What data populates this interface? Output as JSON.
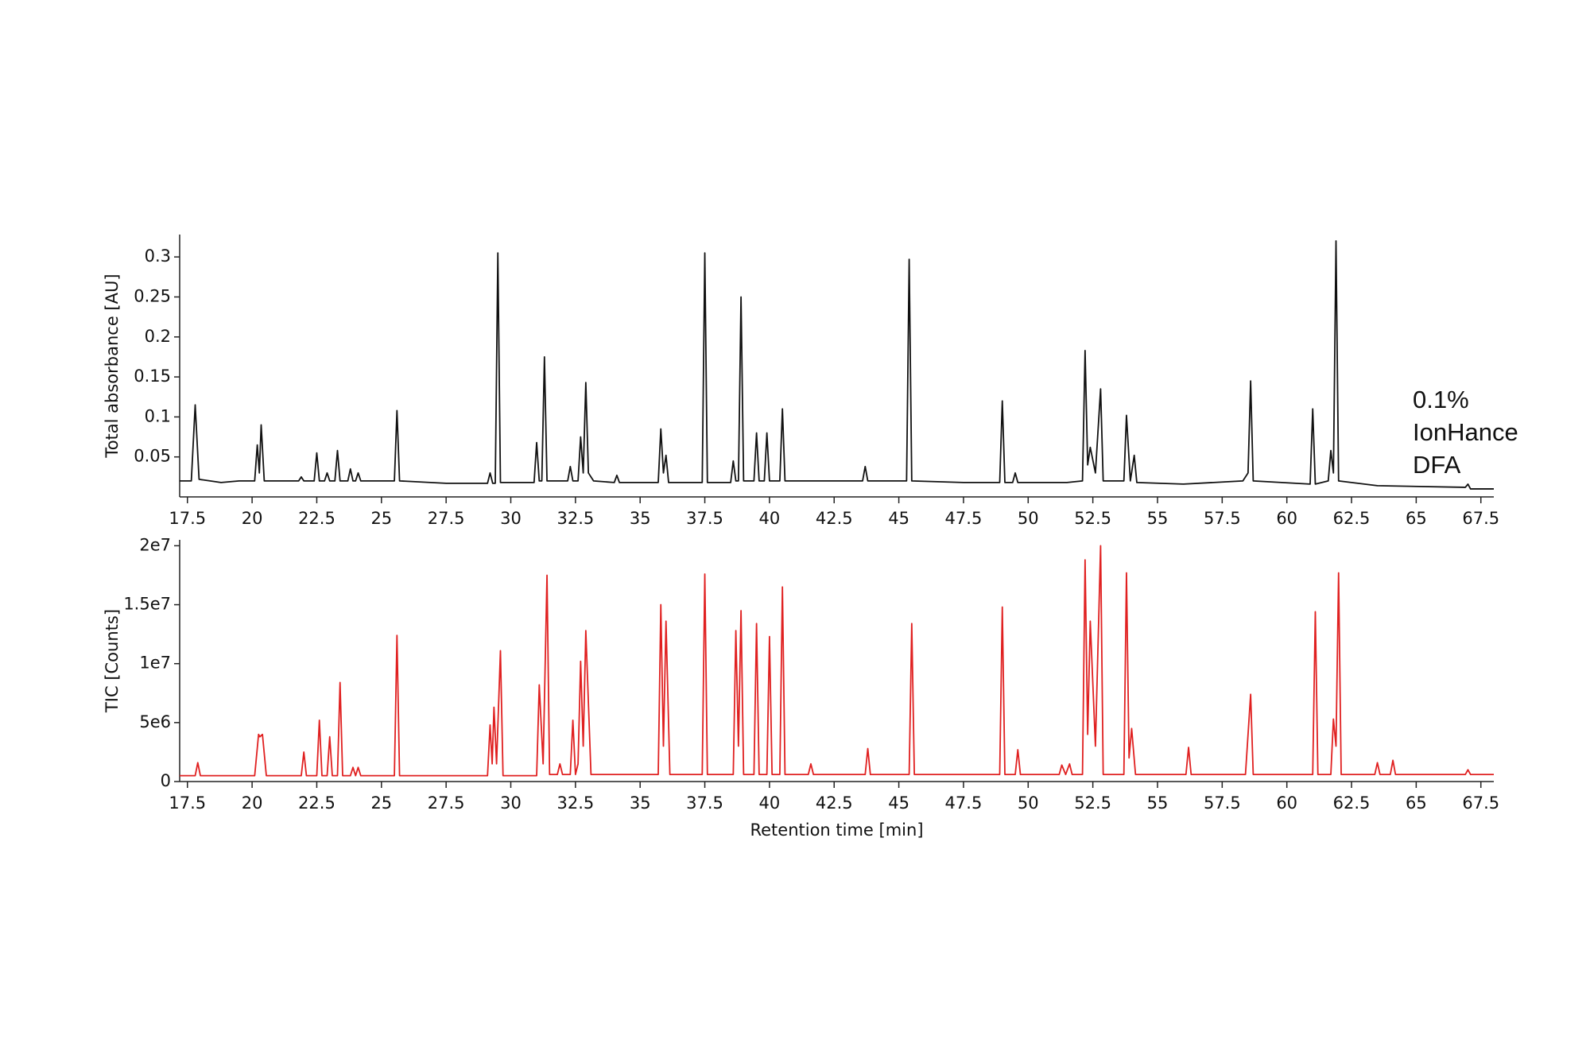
{
  "chart_data": [
    {
      "type": "line",
      "ylabel": "Total absorbance [AU]",
      "color": "#111111",
      "annotation": [
        "0.1%",
        "IonHance",
        "DFA"
      ],
      "xlim": [
        17.2,
        68
      ],
      "xticks": [
        17.5,
        20,
        22.5,
        25,
        27.5,
        30,
        32.5,
        35,
        37.5,
        40,
        42.5,
        45,
        47.5,
        50,
        52.5,
        55,
        57.5,
        60,
        62.5,
        65,
        67.5
      ],
      "ylim": [
        0,
        0.328
      ],
      "yticks": [
        0.05,
        0.1,
        0.15,
        0.2,
        0.25,
        0.3
      ],
      "x": [
        17.2,
        17.65,
        17.8,
        17.95,
        18.8,
        19.5,
        20.1,
        20.2,
        20.28,
        20.35,
        20.47,
        21.8,
        21.9,
        22.0,
        22.4,
        22.5,
        22.6,
        22.8,
        22.9,
        23.0,
        23.2,
        23.3,
        23.4,
        23.7,
        23.8,
        23.9,
        24.0,
        24.1,
        24.2,
        25.5,
        25.6,
        25.7,
        27.5,
        29.1,
        29.2,
        29.3,
        29.4,
        29.5,
        29.6,
        30.9,
        31.0,
        31.1,
        31.2,
        31.3,
        31.4,
        32.2,
        32.3,
        32.4,
        32.6,
        32.7,
        32.8,
        32.9,
        33.0,
        33.2,
        34.0,
        34.1,
        34.2,
        35.7,
        35.8,
        35.9,
        36.0,
        36.1,
        37.4,
        37.5,
        37.6,
        38.5,
        38.6,
        38.7,
        38.8,
        38.9,
        39.0,
        39.4,
        39.5,
        39.6,
        39.8,
        39.9,
        40.0,
        40.4,
        40.5,
        40.6,
        42.5,
        43.6,
        43.7,
        43.8,
        45.3,
        45.4,
        45.5,
        47.5,
        48.9,
        49.0,
        49.1,
        49.4,
        49.5,
        49.6,
        51.5,
        52.1,
        52.2,
        52.3,
        52.4,
        52.6,
        52.8,
        52.9,
        53.7,
        53.8,
        53.95,
        54.1,
        54.2,
        56.0,
        58.3,
        58.5,
        58.6,
        58.7,
        60.9,
        61.0,
        61.1,
        61.6,
        61.7,
        61.8,
        61.9,
        62.0,
        63.5,
        66.9,
        67.0,
        67.1,
        68.0
      ],
      "values": [
        0.02,
        0.02,
        0.115,
        0.022,
        0.018,
        0.02,
        0.02,
        0.065,
        0.03,
        0.09,
        0.02,
        0.02,
        0.025,
        0.02,
        0.02,
        0.055,
        0.02,
        0.02,
        0.03,
        0.02,
        0.02,
        0.058,
        0.02,
        0.02,
        0.035,
        0.02,
        0.02,
        0.03,
        0.02,
        0.02,
        0.108,
        0.02,
        0.017,
        0.017,
        0.03,
        0.017,
        0.017,
        0.305,
        0.018,
        0.018,
        0.068,
        0.02,
        0.02,
        0.175,
        0.02,
        0.02,
        0.038,
        0.02,
        0.02,
        0.075,
        0.03,
        0.143,
        0.03,
        0.02,
        0.018,
        0.027,
        0.018,
        0.018,
        0.085,
        0.03,
        0.052,
        0.018,
        0.018,
        0.305,
        0.018,
        0.018,
        0.045,
        0.02,
        0.02,
        0.25,
        0.02,
        0.02,
        0.08,
        0.02,
        0.02,
        0.08,
        0.02,
        0.02,
        0.11,
        0.02,
        0.02,
        0.02,
        0.038,
        0.02,
        0.02,
        0.297,
        0.02,
        0.018,
        0.018,
        0.12,
        0.018,
        0.018,
        0.03,
        0.018,
        0.018,
        0.02,
        0.183,
        0.04,
        0.062,
        0.03,
        0.135,
        0.02,
        0.02,
        0.102,
        0.02,
        0.052,
        0.018,
        0.016,
        0.02,
        0.03,
        0.145,
        0.02,
        0.016,
        0.11,
        0.016,
        0.02,
        0.058,
        0.03,
        0.32,
        0.02,
        0.014,
        0.012,
        0.016,
        0.01,
        0.01
      ]
    },
    {
      "type": "line",
      "ylabel": "TIC [Counts]",
      "xlabel": "Retention time [min]",
      "color": "#e02020",
      "xlim": [
        17.2,
        68
      ],
      "xticks": [
        17.5,
        20,
        22.5,
        25,
        27.5,
        30,
        32.5,
        35,
        37.5,
        40,
        42.5,
        45,
        47.5,
        50,
        52.5,
        55,
        57.5,
        60,
        62.5,
        65,
        67.5
      ],
      "ylim": [
        0,
        20500000
      ],
      "yticks": [
        0,
        {
          "value": 5000000,
          "label": "5e6"
        },
        {
          "value": 10000000,
          "label": "1e7"
        },
        {
          "value": 15000000,
          "label": "1.5e7"
        },
        {
          "value": 20000000,
          "label": "2e7"
        }
      ],
      "x": [
        17.2,
        17.8,
        17.9,
        18.0,
        20.1,
        20.25,
        20.3,
        20.4,
        20.55,
        21.9,
        22.0,
        22.1,
        22.5,
        22.6,
        22.7,
        22.9,
        23.0,
        23.1,
        23.3,
        23.4,
        23.5,
        23.8,
        23.9,
        24.0,
        24.1,
        24.2,
        25.5,
        25.6,
        25.7,
        29.1,
        29.2,
        29.28,
        29.35,
        29.45,
        29.6,
        29.7,
        31.0,
        31.1,
        31.25,
        31.4,
        31.5,
        31.8,
        31.9,
        32.0,
        32.3,
        32.4,
        32.5,
        32.6,
        32.7,
        32.8,
        32.9,
        33.1,
        35.7,
        35.8,
        35.9,
        36.0,
        36.15,
        37.4,
        37.5,
        37.6,
        38.6,
        38.7,
        38.8,
        38.9,
        39.0,
        39.4,
        39.5,
        39.6,
        39.9,
        40.0,
        40.1,
        40.4,
        40.5,
        40.6,
        41.5,
        41.6,
        41.7,
        43.7,
        43.8,
        43.9,
        45.4,
        45.5,
        45.6,
        48.9,
        49.0,
        49.1,
        49.5,
        49.6,
        49.7,
        51.2,
        51.3,
        51.45,
        51.6,
        51.7,
        52.1,
        52.2,
        52.3,
        52.4,
        52.6,
        52.8,
        52.9,
        53.7,
        53.8,
        53.9,
        54.0,
        54.15,
        56.1,
        56.2,
        56.3,
        58.4,
        58.6,
        58.7,
        61.0,
        61.1,
        61.2,
        61.7,
        61.8,
        61.9,
        62.0,
        62.1,
        63.4,
        63.5,
        63.6,
        64.0,
        64.1,
        64.2,
        66.9,
        67.0,
        67.1,
        68.0
      ],
      "values": [
        500000,
        500000,
        1600000,
        500000,
        500000,
        4000000,
        3800000,
        4000000,
        500000,
        500000,
        2500000,
        500000,
        500000,
        5200000,
        500000,
        500000,
        3800000,
        500000,
        500000,
        8400000,
        500000,
        500000,
        1200000,
        500000,
        1200000,
        500000,
        500000,
        12400000,
        500000,
        500000,
        4800000,
        1500000,
        6300000,
        1500000,
        11100000,
        500000,
        500000,
        8200000,
        1500000,
        17500000,
        600000,
        600000,
        1500000,
        600000,
        600000,
        5200000,
        600000,
        1500000,
        10200000,
        3000000,
        12800000,
        600000,
        600000,
        15000000,
        3000000,
        13600000,
        600000,
        600000,
        17600000,
        600000,
        600000,
        12800000,
        3000000,
        14500000,
        600000,
        600000,
        13400000,
        600000,
        600000,
        12300000,
        600000,
        600000,
        16500000,
        600000,
        600000,
        1500000,
        600000,
        600000,
        2800000,
        600000,
        600000,
        13400000,
        600000,
        600000,
        14800000,
        600000,
        600000,
        2700000,
        600000,
        600000,
        1400000,
        600000,
        1500000,
        600000,
        600000,
        18800000,
        4000000,
        13600000,
        3000000,
        20000000,
        600000,
        600000,
        17700000,
        2000000,
        4500000,
        600000,
        600000,
        2900000,
        600000,
        600000,
        7400000,
        600000,
        600000,
        14400000,
        600000,
        600000,
        5300000,
        3000000,
        17700000,
        600000,
        600000,
        1600000,
        600000,
        600000,
        1800000,
        600000,
        600000,
        1000000,
        600000,
        600000
      ]
    }
  ]
}
